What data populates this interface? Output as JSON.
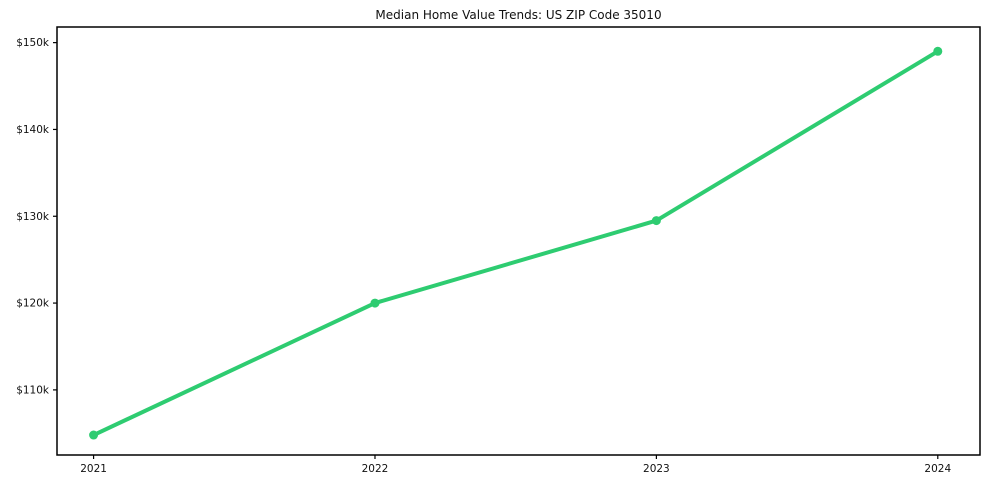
{
  "chart_data": {
    "type": "line",
    "title": "Median Home Value Trends: US ZIP Code 35010",
    "x": [
      2021,
      2022,
      2023,
      2024
    ],
    "x_tick_labels": [
      "2021",
      "2022",
      "2023",
      "2024"
    ],
    "series": [
      {
        "name": "Median Home Value",
        "values": [
          104800,
          120000,
          129500,
          149000
        ],
        "color": "#2ecc71"
      }
    ],
    "y_ticks": [
      110000,
      120000,
      130000,
      140000,
      150000
    ],
    "y_tick_labels": [
      "$110k",
      "$120k",
      "$130k",
      "$140k",
      "$150k"
    ],
    "xlim": [
      2020.87,
      2024.15
    ],
    "ylim": [
      102500,
      151800
    ],
    "grid": false,
    "legend": "none",
    "xlabel": "",
    "ylabel": "",
    "line_width": 4,
    "marker_radius": 4.5,
    "axis_color": "#000000",
    "text_color": "#111111"
  }
}
